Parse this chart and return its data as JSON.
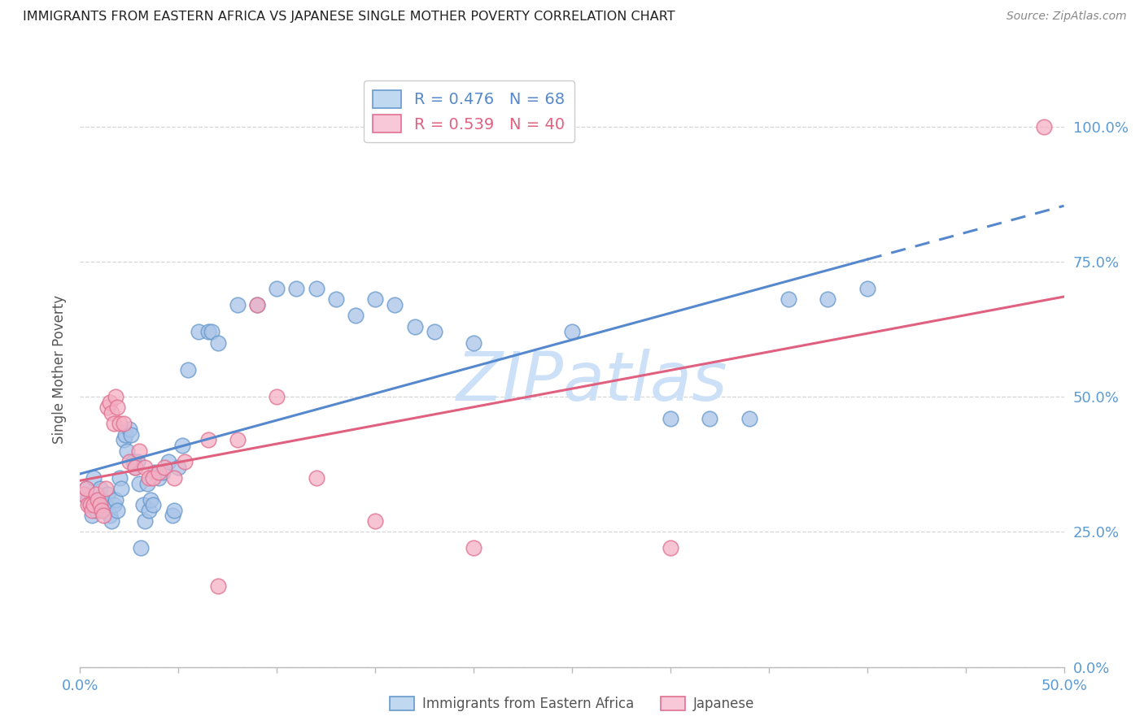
{
  "title": "IMMIGRANTS FROM EASTERN AFRICA VS JAPANESE SINGLE MOTHER POVERTY CORRELATION CHART",
  "source": "Source: ZipAtlas.com",
  "xlabel_blue": "Immigrants from Eastern Africa",
  "xlabel_pink": "Japanese",
  "ylabel": "Single Mother Poverty",
  "watermark": "ZIPatlas",
  "blue_R": 0.476,
  "blue_N": 68,
  "pink_R": 0.539,
  "pink_N": 40,
  "blue_color": "#aac4e8",
  "pink_color": "#f4b0c4",
  "blue_edge_color": "#6699cc",
  "pink_edge_color": "#e07090",
  "blue_line_color": "#5588cc",
  "pink_line_color": "#e06080",
  "legend_blue_fill": "#c0d8f0",
  "legend_pink_fill": "#f8c8d8",
  "blue_points": [
    [
      0.002,
      0.32
    ],
    [
      0.003,
      0.33
    ],
    [
      0.004,
      0.31
    ],
    [
      0.005,
      0.3
    ],
    [
      0.006,
      0.28
    ],
    [
      0.007,
      0.35
    ],
    [
      0.008,
      0.29
    ],
    [
      0.009,
      0.3
    ],
    [
      0.01,
      0.33
    ],
    [
      0.011,
      0.31
    ],
    [
      0.012,
      0.29
    ],
    [
      0.013,
      0.3
    ],
    [
      0.014,
      0.32
    ],
    [
      0.015,
      0.28
    ],
    [
      0.016,
      0.27
    ],
    [
      0.017,
      0.3
    ],
    [
      0.018,
      0.31
    ],
    [
      0.019,
      0.29
    ],
    [
      0.02,
      0.35
    ],
    [
      0.021,
      0.33
    ],
    [
      0.022,
      0.42
    ],
    [
      0.023,
      0.43
    ],
    [
      0.024,
      0.4
    ],
    [
      0.025,
      0.44
    ],
    [
      0.026,
      0.43
    ],
    [
      0.027,
      0.38
    ],
    [
      0.028,
      0.37
    ],
    [
      0.029,
      0.38
    ],
    [
      0.03,
      0.34
    ],
    [
      0.031,
      0.22
    ],
    [
      0.032,
      0.3
    ],
    [
      0.033,
      0.27
    ],
    [
      0.034,
      0.34
    ],
    [
      0.035,
      0.29
    ],
    [
      0.036,
      0.31
    ],
    [
      0.037,
      0.3
    ],
    [
      0.038,
      0.36
    ],
    [
      0.04,
      0.35
    ],
    [
      0.042,
      0.36
    ],
    [
      0.045,
      0.38
    ],
    [
      0.047,
      0.28
    ],
    [
      0.048,
      0.29
    ],
    [
      0.05,
      0.37
    ],
    [
      0.052,
      0.41
    ],
    [
      0.055,
      0.55
    ],
    [
      0.06,
      0.62
    ],
    [
      0.065,
      0.62
    ],
    [
      0.067,
      0.62
    ],
    [
      0.07,
      0.6
    ],
    [
      0.08,
      0.67
    ],
    [
      0.09,
      0.67
    ],
    [
      0.1,
      0.7
    ],
    [
      0.11,
      0.7
    ],
    [
      0.12,
      0.7
    ],
    [
      0.13,
      0.68
    ],
    [
      0.14,
      0.65
    ],
    [
      0.15,
      0.68
    ],
    [
      0.16,
      0.67
    ],
    [
      0.17,
      0.63
    ],
    [
      0.18,
      0.62
    ],
    [
      0.2,
      0.6
    ],
    [
      0.25,
      0.62
    ],
    [
      0.3,
      0.46
    ],
    [
      0.32,
      0.46
    ],
    [
      0.34,
      0.46
    ],
    [
      0.36,
      0.68
    ],
    [
      0.38,
      0.68
    ],
    [
      0.4,
      0.7
    ]
  ],
  "pink_points": [
    [
      0.002,
      0.32
    ],
    [
      0.003,
      0.33
    ],
    [
      0.004,
      0.3
    ],
    [
      0.005,
      0.3
    ],
    [
      0.006,
      0.29
    ],
    [
      0.007,
      0.3
    ],
    [
      0.008,
      0.32
    ],
    [
      0.009,
      0.31
    ],
    [
      0.01,
      0.3
    ],
    [
      0.011,
      0.29
    ],
    [
      0.012,
      0.28
    ],
    [
      0.013,
      0.33
    ],
    [
      0.014,
      0.48
    ],
    [
      0.015,
      0.49
    ],
    [
      0.016,
      0.47
    ],
    [
      0.017,
      0.45
    ],
    [
      0.018,
      0.5
    ],
    [
      0.019,
      0.48
    ],
    [
      0.02,
      0.45
    ],
    [
      0.022,
      0.45
    ],
    [
      0.025,
      0.38
    ],
    [
      0.028,
      0.37
    ],
    [
      0.03,
      0.4
    ],
    [
      0.033,
      0.37
    ],
    [
      0.035,
      0.35
    ],
    [
      0.037,
      0.35
    ],
    [
      0.04,
      0.36
    ],
    [
      0.043,
      0.37
    ],
    [
      0.048,
      0.35
    ],
    [
      0.053,
      0.38
    ],
    [
      0.065,
      0.42
    ],
    [
      0.07,
      0.15
    ],
    [
      0.08,
      0.42
    ],
    [
      0.09,
      0.67
    ],
    [
      0.1,
      0.5
    ],
    [
      0.12,
      0.35
    ],
    [
      0.15,
      0.27
    ],
    [
      0.2,
      0.22
    ],
    [
      0.3,
      0.22
    ],
    [
      0.49,
      1.0
    ]
  ],
  "xlim": [
    0.0,
    0.5
  ],
  "ylim": [
    0.0,
    1.1
  ],
  "ytick_positions": [
    0.0,
    0.25,
    0.5,
    0.75,
    1.0
  ],
  "ytick_labels": [
    "0.0%",
    "25.0%",
    "50.0%",
    "75.0%",
    "100.0%"
  ],
  "xtick_positions": [
    0.0,
    0.05,
    0.1,
    0.15,
    0.2,
    0.25,
    0.3,
    0.35,
    0.4,
    0.45,
    0.5
  ],
  "xtick_labels": [
    "0.0%",
    "",
    "",
    "",
    "",
    "",
    "",
    "",
    "",
    "",
    "50.0%"
  ],
  "grid_color": "#cccccc",
  "bg_color": "#ffffff",
  "title_color": "#222222",
  "source_color": "#888888",
  "tick_color": "#5b9bd5",
  "ylabel_color": "#555555",
  "watermark_color": "#cce0f8"
}
